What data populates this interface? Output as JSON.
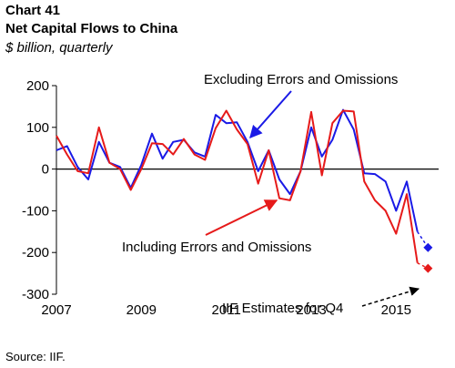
{
  "chart_data": {
    "type": "line",
    "chart_number": "Chart 41",
    "title": "Net Capital Flows to China",
    "subtitle": "$ billion, quarterly",
    "source": "Source: IIF.",
    "ylim": [
      -300,
      200
    ],
    "yticks": [
      -300,
      -200,
      -100,
      0,
      100,
      200
    ],
    "ytick_labels": [
      "-300",
      "-200",
      "-100",
      "0",
      "100",
      "200"
    ],
    "xlim": [
      2007.0,
      2016.0
    ],
    "xticks": [
      2007,
      2009,
      2011,
      2013,
      2015
    ],
    "xtick_labels": [
      "2007",
      "2009",
      "2011",
      "2013",
      "2015"
    ],
    "grid": false,
    "colors": {
      "excluding": "#1a1ae6",
      "including": "#e61a1a"
    },
    "series": [
      {
        "key": "excluding",
        "x": [
          2007.0,
          2007.25,
          2007.5,
          2007.75,
          2008.0,
          2008.25,
          2008.5,
          2008.75,
          2009.0,
          2009.25,
          2009.5,
          2009.75,
          2010.0,
          2010.25,
          2010.5,
          2010.75,
          2011.0,
          2011.25,
          2011.5,
          2011.75,
          2012.0,
          2012.25,
          2012.5,
          2012.75,
          2013.0,
          2013.25,
          2013.5,
          2013.75,
          2014.0,
          2014.25,
          2014.5,
          2014.75,
          2015.0,
          2015.25,
          2015.5
        ],
        "values": [
          45,
          55,
          5,
          -25,
          65,
          15,
          5,
          -45,
          10,
          85,
          25,
          65,
          70,
          40,
          30,
          130,
          110,
          112,
          65,
          -5,
          45,
          -25,
          -60,
          -5,
          100,
          30,
          70,
          142,
          95,
          -10,
          -12,
          -30,
          -100,
          -30,
          -150
        ]
      },
      {
        "key": "including",
        "x": [
          2007.0,
          2007.25,
          2007.5,
          2007.75,
          2008.0,
          2008.25,
          2008.5,
          2008.75,
          2009.0,
          2009.25,
          2009.5,
          2009.75,
          2010.0,
          2010.25,
          2010.5,
          2010.75,
          2011.0,
          2011.25,
          2011.5,
          2011.75,
          2012.0,
          2012.25,
          2012.5,
          2012.75,
          2013.0,
          2013.25,
          2013.5,
          2013.75,
          2014.0,
          2014.25,
          2014.5,
          2014.75,
          2015.0,
          2015.25,
          2015.5
        ],
        "values": [
          80,
          35,
          -5,
          -10,
          100,
          15,
          0,
          -50,
          0,
          62,
          60,
          35,
          72,
          35,
          22,
          98,
          140,
          95,
          60,
          -35,
          45,
          -70,
          -75,
          -5,
          137,
          -15,
          110,
          140,
          138,
          -30,
          -75,
          -100,
          -155,
          -60,
          -225
        ]
      }
    ],
    "estimates": [
      {
        "key": "excluding",
        "x": 2015.75,
        "value": -188
      },
      {
        "key": "including",
        "x": 2015.75,
        "value": -238
      }
    ],
    "annotations": {
      "excluding": "Excluding Errors and Omissions",
      "including": "Including Errors and Omissions",
      "estimates": "IIF Estimates for Q4"
    }
  }
}
